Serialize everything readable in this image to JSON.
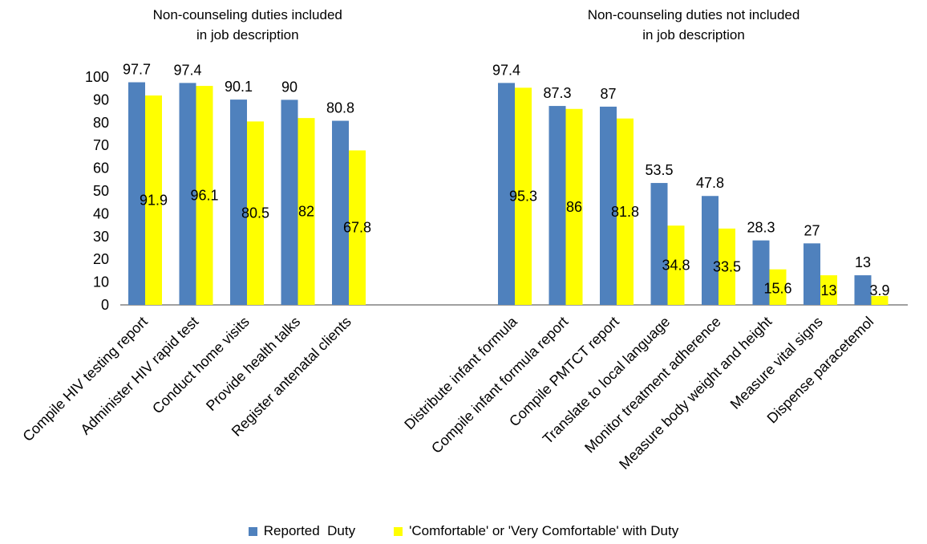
{
  "chart_data": {
    "type": "bar",
    "colors": {
      "reported": "#4F81BD",
      "comfortable": "#FFFF00",
      "axis": "#808080"
    },
    "y_ticks": [
      "0",
      "10",
      "20",
      "30",
      "40",
      "50",
      "60",
      "70",
      "80",
      "90",
      "100"
    ],
    "ylim": [
      0,
      100
    ],
    "grid": false,
    "legend_position": "bottom",
    "legend": [
      "Reported  Duty",
      "'Comfortable' or 'Very Comfortable' with Duty"
    ],
    "groups": [
      {
        "title": [
          "Non-counseling  duties included",
          "in job description"
        ],
        "categories": [
          "Compile HIV testing report",
          "Administer HIV rapid test",
          "Conduct home visits",
          "Provide health talks",
          "Register antenatal  clients"
        ],
        "series": [
          {
            "name": "Reported  Duty",
            "values": [
              97.7,
              97.4,
              90.1,
              90,
              80.8
            ],
            "labels": [
              "97.7",
              "97.4",
              "90.1",
              "90",
              "80.8"
            ]
          },
          {
            "name": "'Comfortable' or 'Very Comfortable' with Duty",
            "values": [
              91.9,
              96.1,
              80.5,
              82,
              67.8
            ],
            "labels": [
              "91.9",
              "96.1",
              "80.5",
              "82",
              "67.8"
            ]
          }
        ]
      },
      {
        "title": [
          "Non-counseling duties not included",
          "in job description"
        ],
        "categories": [
          "Distribute infant formula",
          "Compile infant formula report",
          "Compile PMTCT report",
          "Translate to local language",
          "Monitor treatment  adherence",
          "Measure body weight  and  height",
          "Measure vital signs",
          "Dispense paracetemol"
        ],
        "series": [
          {
            "name": "Reported  Duty",
            "values": [
              97.4,
              87.3,
              87,
              53.5,
              47.8,
              28.3,
              27,
              13
            ],
            "labels": [
              "97.4",
              "87.3",
              "87",
              "53.5",
              "47.8",
              "28.3",
              "27",
              "13"
            ]
          },
          {
            "name": "'Comfortable' or 'Very Comfortable' with Duty",
            "values": [
              95.3,
              86,
              81.8,
              34.8,
              33.5,
              15.6,
              13,
              3.9
            ],
            "labels": [
              "95.3",
              "86",
              "81.8",
              "34.8",
              "33.5",
              "15.6",
              "13",
              "3.9"
            ]
          }
        ]
      }
    ]
  }
}
